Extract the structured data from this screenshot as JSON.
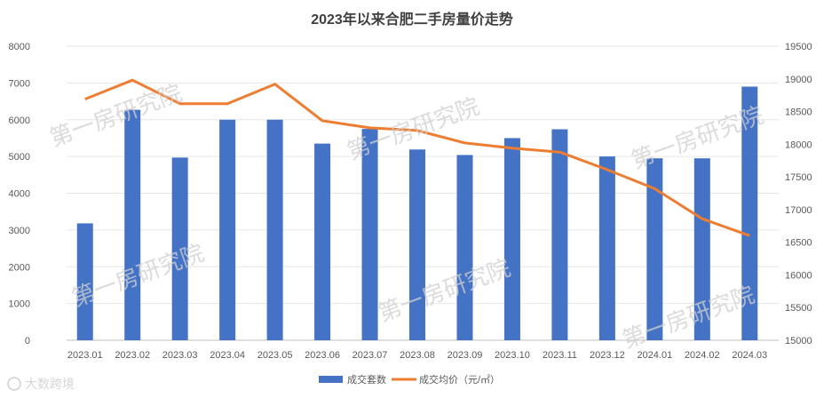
{
  "chart_data": {
    "type": "bar",
    "title": "2023年以来合肥二手房量价走势",
    "categories": [
      "2023.01",
      "2023.02",
      "2023.03",
      "2023.04",
      "2023.05",
      "2023.06",
      "2023.07",
      "2023.08",
      "2023.09",
      "2023.10",
      "2023.11",
      "2023.12",
      "2024.01",
      "2024.02",
      "2024.03"
    ],
    "series": [
      {
        "name": "成交套数",
        "type": "bar",
        "axis": "left",
        "color": "#4472C4",
        "values": [
          3180,
          6270,
          4970,
          6000,
          6000,
          5350,
          5750,
          5190,
          5040,
          5500,
          5740,
          5000,
          4950,
          4950,
          6900
        ]
      },
      {
        "name": "成交均价（元/㎡）",
        "type": "line",
        "axis": "right",
        "color": "#ED7D31",
        "values": [
          18690,
          18980,
          18620,
          18620,
          18920,
          18360,
          18250,
          18210,
          18020,
          17940,
          17880,
          17610,
          17320,
          16860,
          16600
        ]
      }
    ],
    "y_left": {
      "min": 0,
      "max": 8000,
      "ticks": [
        0,
        1000,
        2000,
        3000,
        4000,
        5000,
        6000,
        7000,
        8000
      ]
    },
    "y_right": {
      "min": 15000,
      "max": 19500,
      "ticks": [
        15000,
        15500,
        16000,
        16500,
        17000,
        17500,
        18000,
        18500,
        19000,
        19500
      ]
    },
    "legend_position": "bottom",
    "grid": true
  },
  "watermarks": [
    "第一房研究院",
    "第一房研究院",
    "第一房研究院",
    "第一房研究院",
    "第一房研究院",
    "第一房研究院"
  ],
  "source_mark": "大数跨境"
}
